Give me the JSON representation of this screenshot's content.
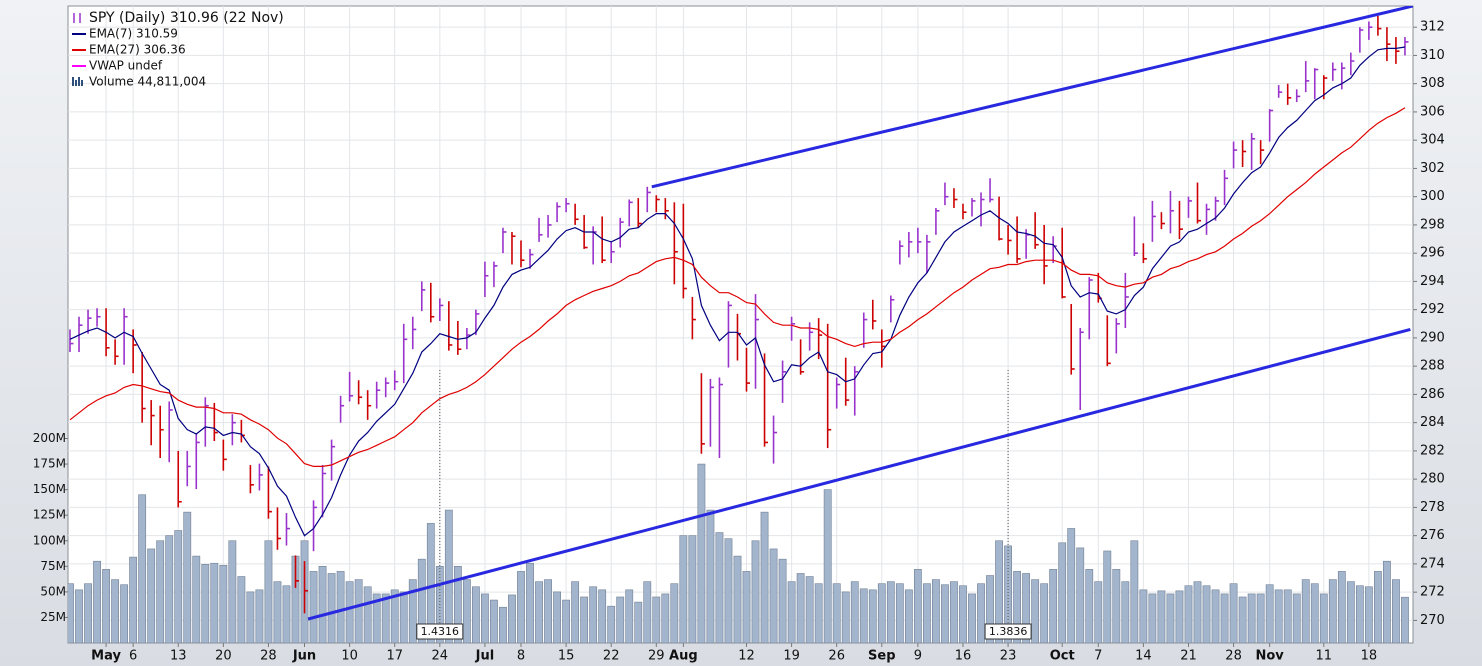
{
  "chart_data": {
    "type": "ohlc",
    "categories": [
      null,
      null,
      null,
      null,
      "May",
      null,
      null,
      "6",
      null,
      null,
      null,
      null,
      "13",
      null,
      null,
      null,
      null,
      "20",
      null,
      null,
      null,
      null,
      "28",
      null,
      null,
      null,
      "Jun",
      null,
      null,
      null,
      null,
      "10",
      null,
      null,
      null,
      null,
      "17",
      null,
      null,
      null,
      null,
      "24",
      null,
      null,
      null,
      null,
      "Jul",
      null,
      null,
      null,
      "8",
      null,
      null,
      null,
      null,
      "15",
      null,
      null,
      null,
      null,
      "22",
      null,
      null,
      null,
      null,
      "29",
      null,
      null,
      "Aug",
      null,
      null,
      null,
      null,
      null,
      null,
      "12",
      null,
      null,
      null,
      null,
      "19",
      null,
      null,
      null,
      null,
      "26",
      null,
      null,
      null,
      null,
      "Sep",
      null,
      null,
      null,
      "9",
      null,
      null,
      null,
      null,
      "16",
      null,
      null,
      null,
      null,
      "23",
      null,
      null,
      null,
      null,
      null,
      "Oct",
      null,
      null,
      null,
      "7",
      null,
      null,
      null,
      null,
      "14",
      null,
      null,
      null,
      null,
      "21",
      null,
      null,
      null,
      null,
      "28",
      null,
      null,
      null,
      "Nov",
      null,
      null,
      null,
      null,
      null,
      "11",
      null,
      null,
      null,
      null,
      "18",
      null,
      null,
      null,
      null
    ],
    "series": [
      {
        "name": "SPY (Daily) 310.96 (22 Nov)",
        "color": "#9933cc",
        "down_color": "#cc0000",
        "close": [
          289.6,
          290.9,
          291.4,
          291.5,
          289.3,
          288.7,
          291.5,
          289.5,
          285.0,
          284.5,
          283.5,
          284.9,
          278.4,
          280.9,
          282.6,
          285.2,
          283.3,
          281.4,
          284.0,
          283.1,
          279.6,
          280.3,
          277.7,
          275.8,
          276.5,
          272.8,
          272.1,
          278.0,
          280.4,
          282.3,
          285.2,
          285.9,
          285.8,
          285.2,
          286.3,
          286.8,
          286.9,
          289.9,
          290.6,
          293.4,
          291.5,
          292.3,
          289.5,
          289.2,
          290.2,
          291.7,
          294.4,
          295.1,
          297.5,
          297.2,
          295.5,
          295.9,
          297.3,
          298.0,
          299.3,
          299.5,
          298.4,
          296.4,
          297.5,
          295.5,
          296.1,
          298.2,
          299.6,
          298.1,
          300.3,
          299.8,
          299.0,
          296.1,
          293.5,
          291.3,
          282.5,
          286.5,
          286.7,
          292.3,
          290.3,
          286.8,
          291.3,
          282.6,
          283.3,
          287.6,
          291.0,
          287.6,
          290.4,
          290.2,
          283.5,
          286.7,
          285.6,
          287.6,
          291.3,
          291.2,
          289.4,
          292.7,
          296.5,
          296.8,
          296.8,
          296.8,
          299.0,
          300.0,
          299.8,
          298.9,
          299.7,
          299.8,
          299.8,
          297.0,
          296.9,
          295.6,
          297.3,
          296.6,
          295.1,
          296.5,
          292.9,
          287.8,
          290.4,
          294.1,
          292.8,
          288.2,
          291.0,
          292.9,
          296.0,
          295.6,
          298.6,
          298.1,
          299.0,
          297.7,
          299.7,
          298.3,
          299.1,
          299.7,
          301.3,
          303.3,
          303.2,
          304.1,
          303.3,
          306.1,
          307.4,
          307.0,
          307.1,
          308.2,
          309.0,
          308.4,
          309.0,
          309.1,
          309.6,
          311.8,
          312.0,
          311.9,
          310.8,
          310.3,
          310.96
        ],
        "high": [
          290.6,
          291.5,
          292.0,
          292.1,
          292.1,
          289.9,
          292.1,
          290.6,
          289.0,
          285.6,
          285.2,
          285.5,
          282.0,
          282.0,
          283.2,
          285.8,
          285.4,
          282.8,
          284.6,
          284.2,
          281.0,
          281.1,
          280.9,
          278.0,
          277.6,
          274.6,
          274.2,
          278.5,
          281.0,
          282.8,
          285.9,
          287.6,
          287.0,
          286.3,
          286.9,
          287.2,
          287.7,
          291.0,
          291.5,
          294.0,
          293.9,
          292.8,
          292.6,
          291.2,
          290.7,
          292.0,
          295.4,
          295.4,
          297.8,
          297.5,
          296.9,
          296.3,
          298.5,
          298.7,
          299.6,
          299.9,
          299.5,
          298.7,
          297.9,
          298.6,
          296.8,
          298.5,
          299.8,
          299.9,
          300.7,
          300.1,
          299.9,
          299.6,
          299.5,
          292.9,
          287.5,
          287.1,
          287.2,
          292.6,
          291.7,
          289.3,
          293.1,
          288.9,
          284.5,
          288.4,
          291.5,
          289.9,
          291.1,
          291.4,
          291.0,
          287.2,
          288.6,
          288.0,
          291.8,
          292.7,
          290.6,
          293.0,
          296.9,
          297.5,
          297.8,
          297.3,
          299.2,
          301.0,
          300.6,
          299.5,
          299.9,
          300.3,
          301.3,
          300.0,
          298.0,
          298.6,
          297.7,
          298.9,
          298.0,
          297.2,
          297.8,
          292.4,
          290.7,
          294.3,
          294.6,
          291.6,
          291.4,
          294.6,
          298.6,
          296.7,
          299.7,
          298.9,
          300.4,
          299.7,
          300.0,
          301.0,
          299.5,
          300.0,
          301.9,
          303.9,
          304.0,
          304.5,
          304.0,
          306.2,
          307.9,
          308.0,
          307.6,
          309.6,
          309.1,
          308.6,
          309.5,
          309.5,
          310.2,
          312.0,
          312.4,
          312.8,
          312.0,
          311.3,
          311.3
        ],
        "low": [
          289.0,
          289.0,
          290.3,
          290.8,
          288.7,
          288.1,
          288.1,
          287.5,
          284.0,
          282.4,
          281.5,
          281.2,
          278.0,
          279.5,
          279.3,
          282.3,
          282.7,
          280.6,
          282.4,
          282.6,
          279.0,
          279.2,
          277.2,
          275.0,
          275.3,
          272.3,
          270.5,
          274.9,
          277.3,
          279.9,
          284.0,
          285.5,
          285.3,
          284.2,
          285.0,
          285.8,
          286.3,
          286.8,
          289.2,
          291.9,
          291.1,
          291.2,
          289.1,
          288.8,
          289.2,
          290.2,
          292.9,
          293.6,
          296.0,
          295.2,
          295.0,
          294.9,
          296.8,
          297.1,
          298.2,
          298.9,
          298.0,
          296.3,
          295.2,
          295.3,
          295.3,
          296.4,
          297.9,
          297.8,
          298.9,
          298.9,
          298.4,
          293.8,
          292.8,
          289.9,
          281.8,
          282.3,
          281.5,
          287.9,
          288.4,
          286.2,
          286.4,
          282.3,
          281.1,
          285.4,
          289.8,
          287.4,
          289.1,
          288.5,
          282.2,
          285.0,
          285.2,
          284.5,
          289.3,
          290.6,
          287.9,
          291.1,
          295.2,
          295.7,
          296.0,
          294.6,
          297.3,
          299.4,
          299.2,
          298.4,
          298.6,
          297.9,
          299.6,
          296.9,
          295.9,
          295.3,
          295.6,
          296.3,
          293.8,
          295.3,
          292.8,
          287.4,
          284.9,
          289.9,
          292.5,
          288.0,
          288.9,
          290.7,
          295.8,
          295.3,
          296.8,
          297.7,
          297.4,
          297.0,
          298.5,
          298.1,
          297.3,
          298.3,
          299.4,
          302.0,
          302.1,
          301.9,
          302.3,
          303.9,
          307.0,
          306.5,
          306.7,
          307.4,
          306.9,
          306.9,
          308.2,
          307.6,
          308.6,
          310.2,
          311.1,
          311.4,
          309.6,
          309.4,
          310.0
        ]
      },
      {
        "name": "EMA(7) 310.59",
        "color": "#000080",
        "values": [
          289.9,
          290.2,
          290.5,
          290.7,
          290.4,
          290.0,
          290.4,
          290.1,
          288.9,
          287.8,
          286.7,
          286.3,
          284.3,
          283.5,
          283.2,
          283.7,
          283.6,
          283.1,
          283.3,
          283.2,
          282.3,
          281.8,
          280.8,
          279.5,
          278.8,
          277.3,
          276.0,
          276.5,
          277.5,
          278.7,
          280.3,
          281.7,
          282.7,
          283.3,
          284.1,
          284.7,
          285.3,
          286.4,
          287.5,
          289.0,
          289.6,
          290.3,
          290.1,
          289.9,
          290.0,
          290.4,
          291.4,
          292.3,
          293.6,
          294.5,
          294.8,
          295.0,
          295.6,
          296.2,
          297.0,
          297.6,
          297.8,
          297.5,
          297.5,
          297.0,
          296.8,
          297.1,
          297.7,
          297.8,
          298.4,
          298.8,
          298.8,
          298.1,
          297.0,
          295.6,
          292.3,
          290.9,
          289.8,
          290.4,
          290.4,
          289.5,
          290.0,
          288.1,
          286.9,
          287.1,
          288.1,
          288.0,
          288.6,
          289.0,
          287.6,
          287.4,
          286.9,
          287.1,
          288.1,
          288.9,
          289.0,
          289.9,
          291.6,
          292.9,
          293.9,
          294.6,
          295.7,
          296.8,
          297.5,
          297.9,
          298.3,
          298.7,
          299.0,
          298.5,
          298.1,
          297.5,
          297.4,
          297.2,
          296.7,
          296.6,
          295.7,
          293.7,
          292.9,
          293.2,
          293.1,
          291.9,
          291.7,
          292.0,
          293.0,
          293.6,
          294.9,
          295.7,
          296.5,
          296.8,
          297.5,
          297.7,
          298.1,
          298.5,
          299.2,
          300.2,
          301.0,
          301.7,
          302.1,
          303.1,
          304.2,
          304.9,
          305.4,
          306.1,
          306.8,
          307.2,
          307.7,
          308.0,
          308.4,
          309.3,
          309.9,
          310.4,
          310.5,
          310.5,
          310.6
        ]
      },
      {
        "name": "EMA(27) 306.36",
        "color": "#e00000",
        "values": [
          284.2,
          284.7,
          285.2,
          285.6,
          285.9,
          286.1,
          286.5,
          286.7,
          286.6,
          286.4,
          286.2,
          286.1,
          285.6,
          285.3,
          285.1,
          285.1,
          285.0,
          284.7,
          284.7,
          284.6,
          284.2,
          283.9,
          283.5,
          282.9,
          282.5,
          281.8,
          281.1,
          280.9,
          280.9,
          281.0,
          281.3,
          281.6,
          281.9,
          282.1,
          282.4,
          282.7,
          283.0,
          283.5,
          284.0,
          284.7,
          285.2,
          285.7,
          286.0,
          286.2,
          286.5,
          286.9,
          287.4,
          288.0,
          288.6,
          289.2,
          289.7,
          290.1,
          290.6,
          291.2,
          291.7,
          292.3,
          292.7,
          293.0,
          293.3,
          293.5,
          293.7,
          294.0,
          294.4,
          294.6,
          295.0,
          295.4,
          295.6,
          295.7,
          295.5,
          295.2,
          294.3,
          293.7,
          293.2,
          293.2,
          292.9,
          292.5,
          292.4,
          291.7,
          291.1,
          290.9,
          290.9,
          290.7,
          290.7,
          290.6,
          290.1,
          289.9,
          289.6,
          289.4,
          289.6,
          289.7,
          289.7,
          289.9,
          290.4,
          290.8,
          291.3,
          291.7,
          292.2,
          292.7,
          293.2,
          293.6,
          294.1,
          294.5,
          294.9,
          295.0,
          295.2,
          295.2,
          295.4,
          295.5,
          295.5,
          295.5,
          295.3,
          294.8,
          294.5,
          294.5,
          294.4,
          293.9,
          293.7,
          293.6,
          293.8,
          293.9,
          294.3,
          294.5,
          294.9,
          295.1,
          295.4,
          295.6,
          295.9,
          296.1,
          296.5,
          297.0,
          297.4,
          297.9,
          298.3,
          298.8,
          299.4,
          300.0,
          300.5,
          301.0,
          301.6,
          302.1,
          302.6,
          303.1,
          303.5,
          304.1,
          304.7,
          305.2,
          305.6,
          305.9,
          306.3
        ]
      },
      {
        "name": "VWAP undef",
        "color": "#ff00ff"
      },
      {
        "name": "Volume 44,811,004",
        "color": "#a3b5cc",
        "axis": "y2",
        "values": [
          58,
          52,
          58,
          80,
          72,
          62,
          57,
          84,
          145,
          92,
          100,
          105,
          110,
          128,
          85,
          77,
          78,
          76,
          100,
          65,
          50,
          52,
          100,
          60,
          56,
          85,
          100,
          70,
          75,
          68,
          70,
          60,
          62,
          55,
          48,
          48,
          52,
          50,
          62,
          82,
          117,
          75,
          130,
          75,
          62,
          55,
          48,
          42,
          35,
          47,
          70,
          78,
          60,
          62,
          50,
          42,
          60,
          45,
          55,
          52,
          36,
          45,
          52,
          40,
          60,
          45,
          48,
          58,
          105,
          105,
          175,
          130,
          108,
          102,
          85,
          70,
          100,
          128,
          92,
          82,
          60,
          68,
          65,
          58,
          150,
          58,
          50,
          60,
          53,
          52,
          58,
          60,
          58,
          52,
          72,
          58,
          62,
          57,
          60,
          56,
          48,
          58,
          66,
          100,
          95,
          70,
          68,
          62,
          58,
          72,
          98,
          112,
          93,
          72,
          60,
          90,
          72,
          60,
          100,
          52,
          48,
          51,
          48,
          51,
          56,
          60,
          56,
          52,
          48,
          58,
          45,
          48,
          48,
          57,
          52,
          52,
          48,
          62,
          58,
          48,
          62,
          70,
          60,
          56,
          55,
          70,
          80,
          62,
          44.8
        ]
      }
    ],
    "ylim": [
      268.4,
      313.5
    ],
    "yticks": [
      270,
      272,
      274,
      276,
      278,
      280,
      282,
      284,
      286,
      288,
      290,
      292,
      294,
      296,
      298,
      300,
      302,
      304,
      306,
      308,
      310,
      312
    ],
    "y2lim": [
      0,
      623
    ],
    "y2ticks": [
      {
        "value": 25,
        "label": "25M"
      },
      {
        "value": 50,
        "label": "50M"
      },
      {
        "value": 75,
        "label": "75M"
      },
      {
        "value": 100,
        "label": "100M"
      },
      {
        "value": 125,
        "label": "125M"
      },
      {
        "value": 150,
        "label": "150M"
      },
      {
        "value": 175,
        "label": "175M"
      },
      {
        "value": 200,
        "label": "200M"
      }
    ],
    "grid": true,
    "trendlines": [
      {
        "x": [
          64.5,
          148.9
        ],
        "y": [
          300.7,
          313.5
        ],
        "color": "#2828e0"
      },
      {
        "x": [
          26.4,
          148.6
        ],
        "y": [
          270.1,
          290.6
        ],
        "color": "#2828e0"
      }
    ],
    "markers": [
      {
        "x": 41,
        "label": "1.4316"
      },
      {
        "x": 104,
        "label": "1.3836"
      }
    ]
  }
}
